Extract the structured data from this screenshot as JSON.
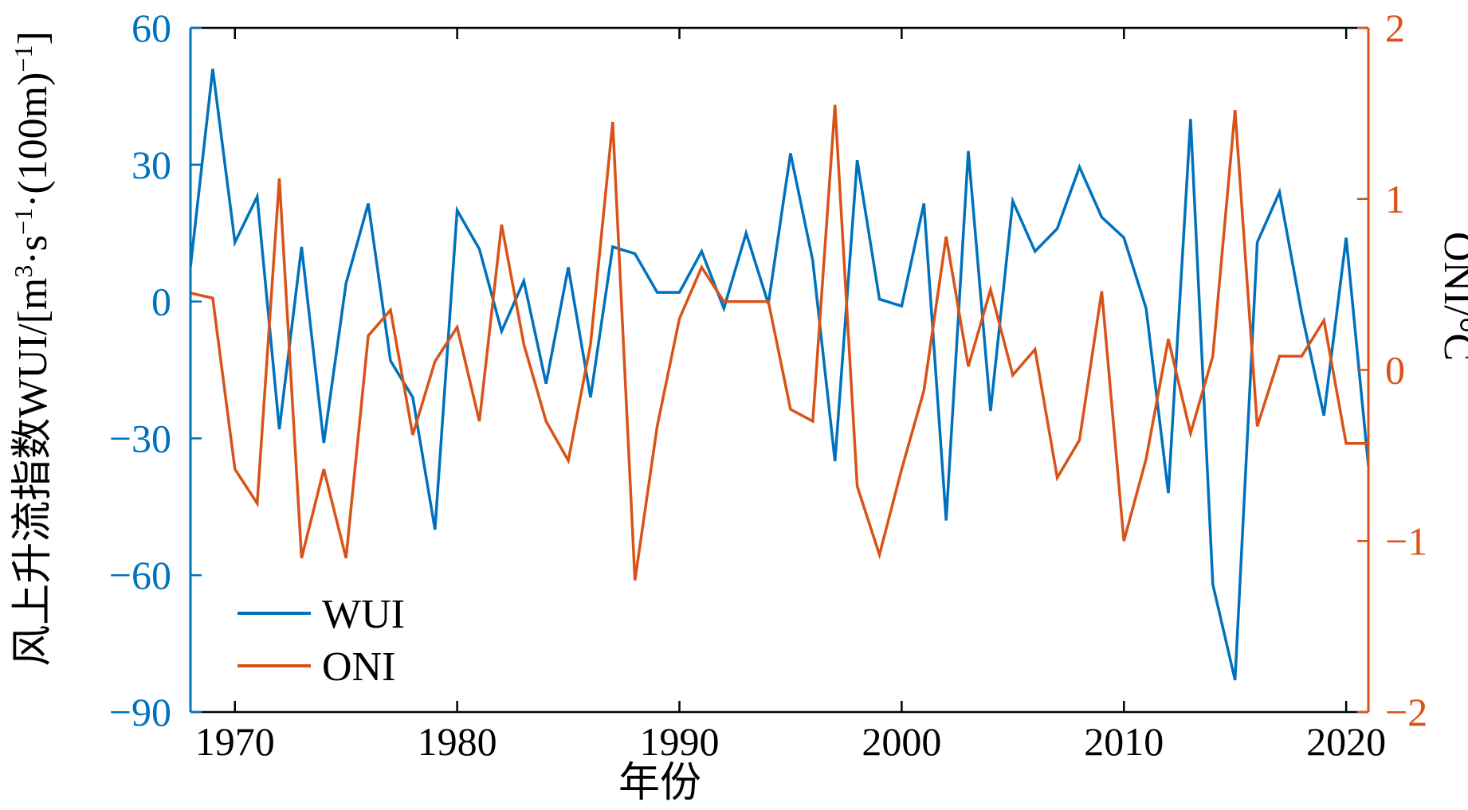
{
  "chart_data": {
    "type": "line",
    "xlabel": "年份",
    "ylabel_left": "风上升流指数WUI/[m³·s⁻¹·(100m)⁻¹]",
    "ylabel_left_parts": [
      "风上升流指数WUI/[m",
      "3",
      "·s",
      "−1",
      "·(100m)",
      "−1",
      "]"
    ],
    "ylabel_right": "ONI/°C",
    "xlim": [
      1968,
      2021
    ],
    "ylim_left": [
      -90,
      60
    ],
    "ylim_right": [
      -2,
      2
    ],
    "x_ticks": [
      1970,
      1980,
      1990,
      2000,
      2010,
      2020
    ],
    "y_ticks_left": [
      {
        "value": 60,
        "label": "60"
      },
      {
        "value": 30,
        "label": "30"
      },
      {
        "value": 0,
        "label": "0"
      },
      {
        "value": -30,
        "label": "−30"
      },
      {
        "value": -60,
        "label": "−60"
      },
      {
        "value": -90,
        "label": "−90"
      }
    ],
    "y_ticks_right": [
      {
        "value": 2,
        "label": "2"
      },
      {
        "value": 1,
        "label": "1"
      },
      {
        "value": 0,
        "label": "0"
      },
      {
        "value": -1,
        "label": "−1"
      },
      {
        "value": -2,
        "label": "−2"
      }
    ],
    "legend_position": "bottom-left",
    "colors": {
      "WUI": "#0072bd",
      "ONI": "#d95319",
      "axis": "#000000"
    },
    "series": [
      {
        "name": "WUI",
        "axis": "left",
        "x": [
          1968,
          1969,
          1970,
          1971,
          1972,
          1973,
          1974,
          1975,
          1976,
          1977,
          1978,
          1979,
          1980,
          1981,
          1982,
          1983,
          1984,
          1985,
          1986,
          1987,
          1988,
          1989,
          1990,
          1991,
          1992,
          1993,
          1994,
          1995,
          1996,
          1997,
          1998,
          1999,
          2000,
          2001,
          2002,
          2003,
          2004,
          2005,
          2006,
          2007,
          2008,
          2009,
          2010,
          2011,
          2012,
          2013,
          2014,
          2015,
          2016,
          2017,
          2018,
          2019,
          2020,
          2021
        ],
        "values": [
          7.6,
          51,
          13,
          23,
          -28,
          12,
          -31,
          4,
          21.5,
          -13,
          -21,
          -50,
          20,
          11.5,
          -6.5,
          4.5,
          -18,
          7.5,
          -21,
          12,
          10.5,
          2,
          2,
          11,
          -1.5,
          15,
          -0.5,
          32.5,
          9,
          -35,
          31,
          0.5,
          -1,
          21.5,
          -48,
          33,
          -24,
          22,
          11,
          16,
          29.5,
          18.5,
          14,
          -1.5,
          -42,
          40,
          -62,
          -83,
          13,
          24,
          -2.5,
          -25,
          14,
          -36
        ]
      },
      {
        "name": "ONI",
        "axis": "right",
        "x": [
          1968,
          1969,
          1970,
          1971,
          1972,
          1973,
          1974,
          1975,
          1976,
          1977,
          1978,
          1979,
          1980,
          1981,
          1982,
          1983,
          1984,
          1985,
          1986,
          1987,
          1988,
          1989,
          1990,
          1991,
          1992,
          1993,
          1994,
          1995,
          1996,
          1997,
          1998,
          1999,
          2000,
          2001,
          2002,
          2003,
          2004,
          2005,
          2006,
          2007,
          2008,
          2009,
          2010,
          2011,
          2012,
          2013,
          2014,
          2015,
          2016,
          2017,
          2018,
          2019,
          2020,
          2021
        ],
        "values": [
          0.45,
          0.42,
          -0.58,
          -0.78,
          1.12,
          -1.1,
          -0.58,
          -1.1,
          0.2,
          0.35,
          -0.38,
          0.05,
          0.25,
          -0.3,
          0.85,
          0.15,
          -0.3,
          -0.53,
          0.15,
          1.45,
          -1.23,
          -0.33,
          0.3,
          0.6,
          0.4,
          0.4,
          0.4,
          -0.23,
          -0.3,
          1.55,
          -0.68,
          -1.08,
          -0.58,
          -0.12,
          0.78,
          0.02,
          0.47,
          -0.03,
          0.12,
          -0.63,
          -0.41,
          0.46,
          -1.0,
          -0.52,
          0.18,
          -0.37,
          0.08,
          1.52,
          -0.33,
          0.08,
          0.08,
          0.29,
          -0.43,
          -0.43
        ]
      }
    ]
  }
}
